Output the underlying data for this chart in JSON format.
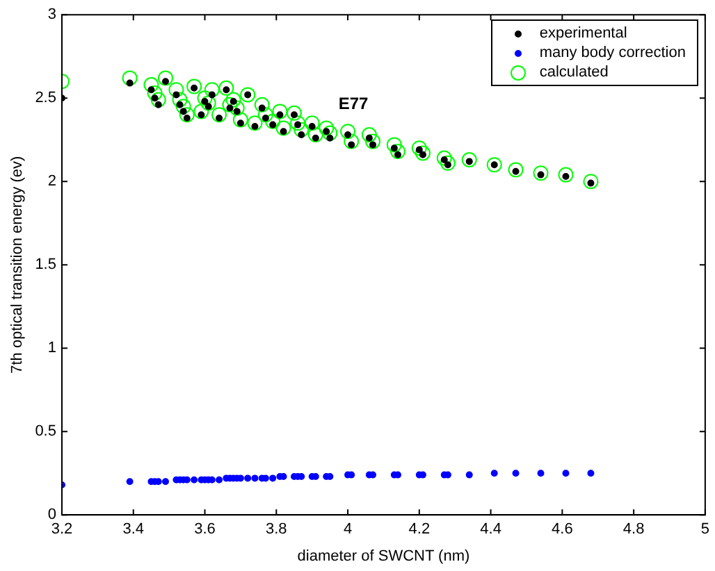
{
  "chart_data": {
    "type": "scatter",
    "xlabel": "diameter of SWCNT (nm)",
    "ylabel": "7th optical transition energy (ev)",
    "x": [
      3.2,
      3.39,
      3.45,
      3.46,
      3.47,
      3.49,
      3.52,
      3.53,
      3.54,
      3.55,
      3.57,
      3.59,
      3.6,
      3.61,
      3.62,
      3.64,
      3.66,
      3.67,
      3.68,
      3.69,
      3.7,
      3.72,
      3.74,
      3.76,
      3.77,
      3.79,
      3.81,
      3.82,
      3.85,
      3.86,
      3.87,
      3.9,
      3.91,
      3.94,
      3.95,
      4.0,
      4.01,
      4.06,
      4.07,
      4.13,
      4.14,
      4.2,
      4.21,
      4.27,
      4.28,
      4.34,
      4.41,
      4.47,
      4.54,
      4.61,
      4.68
    ],
    "series": [
      {
        "name": "experimental",
        "color": "#000000",
        "values": [
          2.5,
          2.59,
          2.55,
          2.5,
          2.46,
          2.6,
          2.52,
          2.46,
          2.42,
          2.38,
          2.56,
          2.4,
          2.48,
          2.45,
          2.52,
          2.38,
          2.55,
          2.44,
          2.48,
          2.42,
          2.35,
          2.52,
          2.33,
          2.44,
          2.38,
          2.34,
          2.4,
          2.3,
          2.4,
          2.34,
          2.28,
          2.33,
          2.26,
          2.3,
          2.26,
          2.28,
          2.22,
          2.26,
          2.22,
          2.2,
          2.16,
          2.19,
          2.16,
          2.13,
          2.1,
          2.12,
          2.1,
          2.06,
          2.04,
          2.03,
          1.99
        ]
      },
      {
        "name": "many body correction",
        "color": "#0000ff",
        "values": [
          0.18,
          0.2,
          0.2,
          0.2,
          0.2,
          0.2,
          0.21,
          0.21,
          0.21,
          0.21,
          0.21,
          0.21,
          0.21,
          0.21,
          0.21,
          0.21,
          0.22,
          0.22,
          0.22,
          0.22,
          0.22,
          0.22,
          0.22,
          0.22,
          0.22,
          0.22,
          0.23,
          0.23,
          0.23,
          0.23,
          0.23,
          0.23,
          0.23,
          0.23,
          0.23,
          0.24,
          0.24,
          0.24,
          0.24,
          0.24,
          0.24,
          0.24,
          0.24,
          0.24,
          0.24,
          0.24,
          0.25,
          0.25,
          0.25,
          0.25,
          0.25
        ]
      },
      {
        "name": "calculated",
        "color": "#00ff00",
        "values": [
          2.6,
          2.62,
          2.58,
          2.53,
          2.49,
          2.62,
          2.55,
          2.49,
          2.45,
          2.4,
          2.57,
          2.42,
          2.5,
          2.47,
          2.55,
          2.4,
          2.56,
          2.46,
          2.49,
          2.44,
          2.37,
          2.52,
          2.35,
          2.46,
          2.4,
          2.36,
          2.42,
          2.32,
          2.41,
          2.35,
          2.31,
          2.35,
          2.28,
          2.32,
          2.29,
          2.3,
          2.24,
          2.28,
          2.24,
          2.22,
          2.18,
          2.2,
          2.17,
          2.14,
          2.11,
          2.13,
          2.1,
          2.07,
          2.05,
          2.04,
          2.0
        ]
      }
    ],
    "annotations": [
      "E77"
    ],
    "xlim": [
      3.2,
      5
    ],
    "xticks": [
      3.2,
      3.4,
      3.6,
      3.8,
      4,
      4.2,
      4.4,
      4.6,
      4.8,
      5
    ],
    "ylim": [
      0,
      3
    ],
    "yticks": [
      0,
      0.5,
      1,
      1.5,
      2,
      2.5,
      3
    ],
    "grid": false,
    "legend": "top right",
    "marker": "circle"
  }
}
